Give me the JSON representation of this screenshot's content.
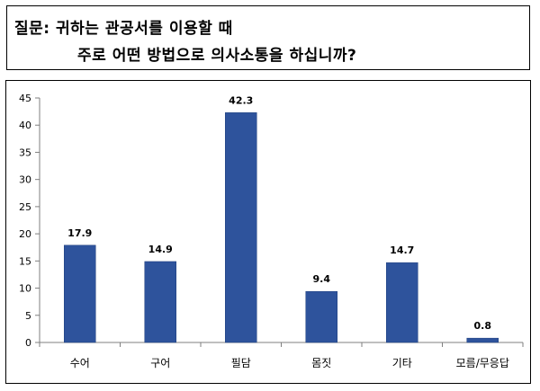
{
  "question": {
    "line1": "질문:  귀하는 관공서를 이용할 때",
    "line2": "주로 어떤 방법으로 의사소통을 하십니까?"
  },
  "chart_data": {
    "type": "bar",
    "categories": [
      "수어",
      "구어",
      "필담",
      "몸짓",
      "기타",
      "모름/무응답"
    ],
    "values": [
      17.9,
      14.9,
      42.3,
      9.4,
      14.7,
      0.8
    ],
    "value_labels": [
      "17.9",
      "14.9",
      "42.3",
      "9.4",
      "14.7",
      "0.8"
    ],
    "title": "",
    "xlabel": "",
    "ylabel": "",
    "ylim": [
      0,
      45
    ],
    "yticks": [
      "0",
      "5",
      "10",
      "15",
      "20",
      "25",
      "30",
      "35",
      "40",
      "45"
    ],
    "grid": false,
    "legend": "none",
    "colors": {
      "bar": "#2e539c",
      "bar_edge": "#1f3f7d",
      "axis": "#7f7f7f"
    }
  }
}
